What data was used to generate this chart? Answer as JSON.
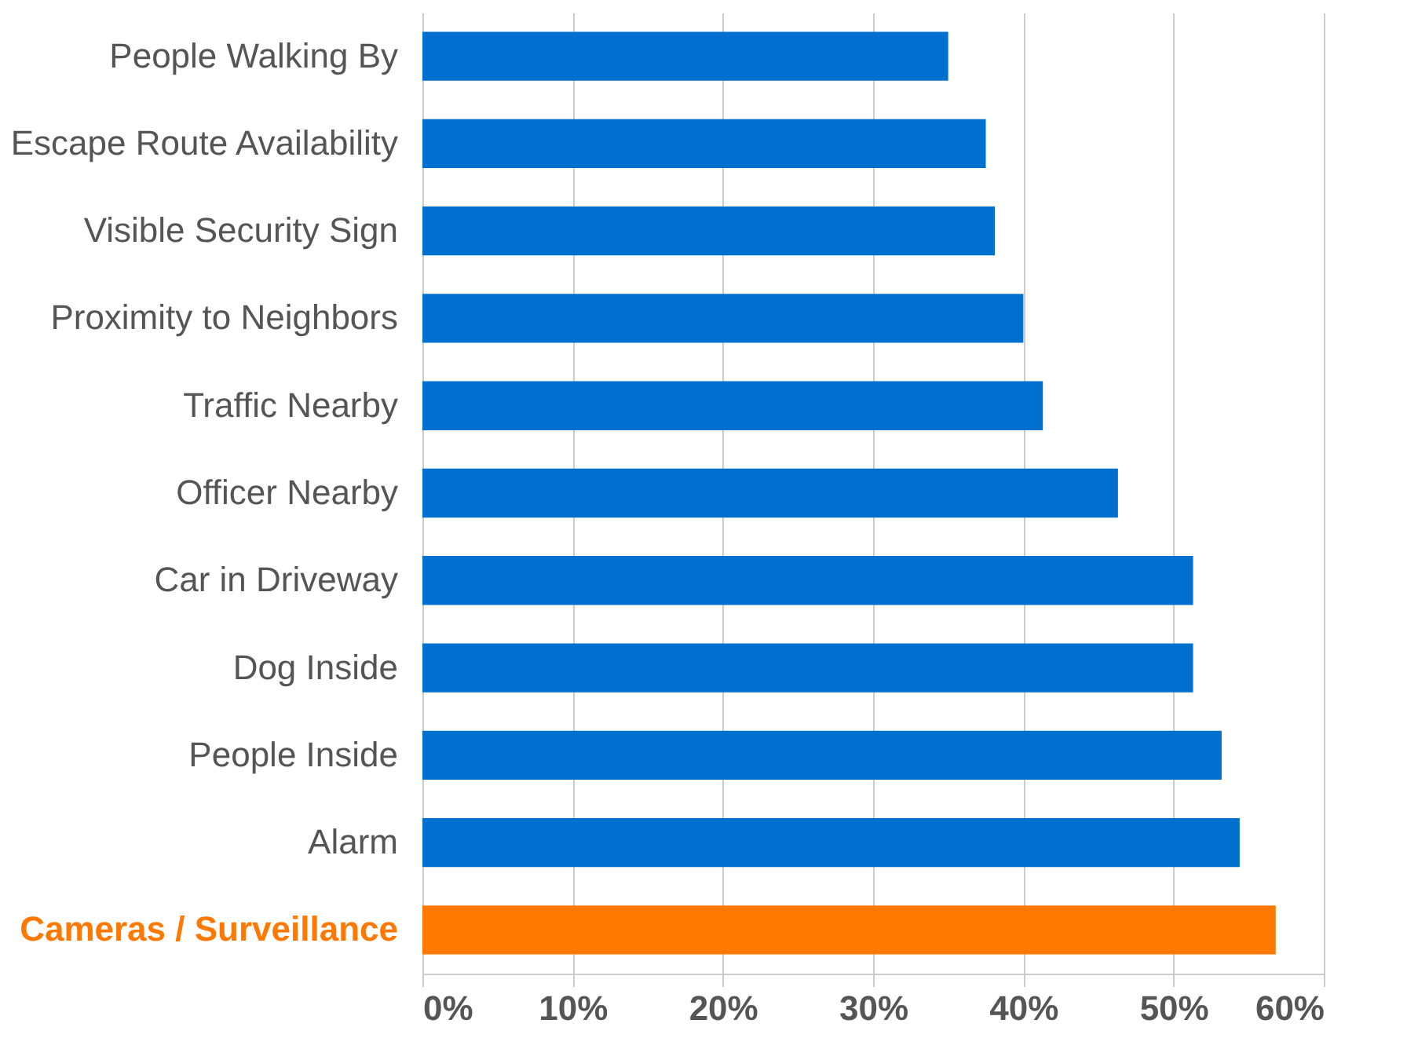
{
  "chart_data": {
    "type": "bar",
    "orientation": "horizontal",
    "categories": [
      "People Walking By",
      "Escape Route Availability",
      "Visible Security Sign",
      "Proximity to Neighbors",
      "Traffic Nearby",
      "Officer Nearby",
      "Car in Driveway",
      "Dog Inside",
      "People Inside",
      "Alarm",
      "Cameras / Surveillance"
    ],
    "values": [
      35.0,
      37.5,
      38.1,
      40.0,
      41.3,
      46.3,
      51.3,
      51.3,
      53.2,
      54.4,
      56.8
    ],
    "colors": [
      "#0070d0",
      "#0070d0",
      "#0070d0",
      "#0070d0",
      "#0070d0",
      "#0070d0",
      "#0070d0",
      "#0070d0",
      "#0070d0",
      "#0070d0",
      "#ff7800"
    ],
    "xlim": [
      0,
      60
    ],
    "xticks": [
      {
        "value": 0,
        "label": "0%"
      },
      {
        "value": 10,
        "label": "10%"
      },
      {
        "value": 20,
        "label": "20%"
      },
      {
        "value": 30,
        "label": "30%"
      },
      {
        "value": 40,
        "label": "40%"
      },
      {
        "value": 50,
        "label": "50%"
      },
      {
        "value": 60,
        "label": "60%"
      }
    ],
    "grid": "x"
  }
}
